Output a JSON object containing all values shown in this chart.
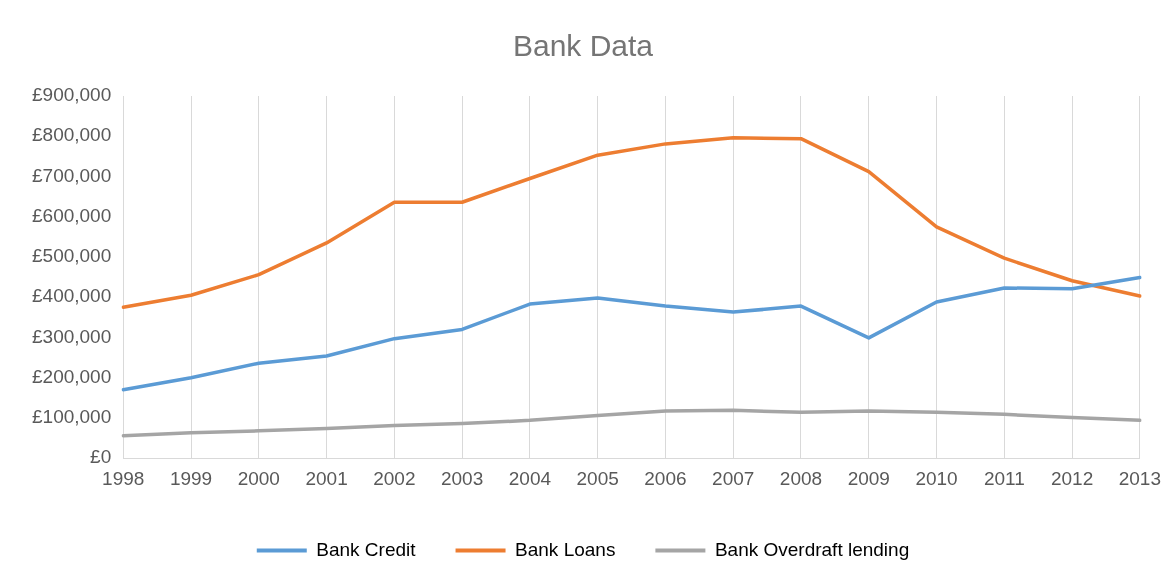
{
  "chart_data": {
    "type": "line",
    "title": "Bank Data",
    "categories": [
      "1998",
      "1999",
      "2000",
      "2001",
      "2002",
      "2003",
      "2004",
      "2005",
      "2006",
      "2007",
      "2008",
      "2009",
      "2010",
      "2011",
      "2012",
      "2013"
    ],
    "series": [
      {
        "name": "Bank Credit",
        "color": "#5b9bd5",
        "values": [
          170000,
          200000,
          236000,
          254000,
          297000,
          320000,
          383000,
          398000,
          378000,
          363000,
          378000,
          299000,
          388000,
          423000,
          421000,
          449000
        ]
      },
      {
        "name": "Bank Loans",
        "color": "#ed7d31",
        "values": [
          375000,
          405000,
          456000,
          535000,
          636000,
          636000,
          695000,
          753000,
          781000,
          796000,
          794000,
          712000,
          575000,
          497000,
          441000,
          403000
        ]
      },
      {
        "name": "Bank Overdraft lending",
        "color": "#a5a5a5",
        "values": [
          56000,
          63000,
          68000,
          74000,
          81000,
          86000,
          94000,
          106000,
          117000,
          119000,
          114000,
          117000,
          114000,
          109000,
          101000,
          94000
        ]
      }
    ],
    "ylim": [
      0,
      900000
    ],
    "yticks": [
      {
        "value": 0,
        "label": "£0"
      },
      {
        "value": 100000,
        "label": "£100,000"
      },
      {
        "value": 200000,
        "label": "£200,000"
      },
      {
        "value": 300000,
        "label": "£300,000"
      },
      {
        "value": 400000,
        "label": "£400,000"
      },
      {
        "value": 500000,
        "label": "£500,000"
      },
      {
        "value": 600000,
        "label": "£600,000"
      },
      {
        "value": 700000,
        "label": "£700,000"
      },
      {
        "value": 800000,
        "label": "£800,000"
      },
      {
        "value": 900000,
        "label": "£900,000"
      }
    ],
    "grid": "x",
    "legend": "bottom",
    "marker": "none",
    "line_style": "solid"
  }
}
